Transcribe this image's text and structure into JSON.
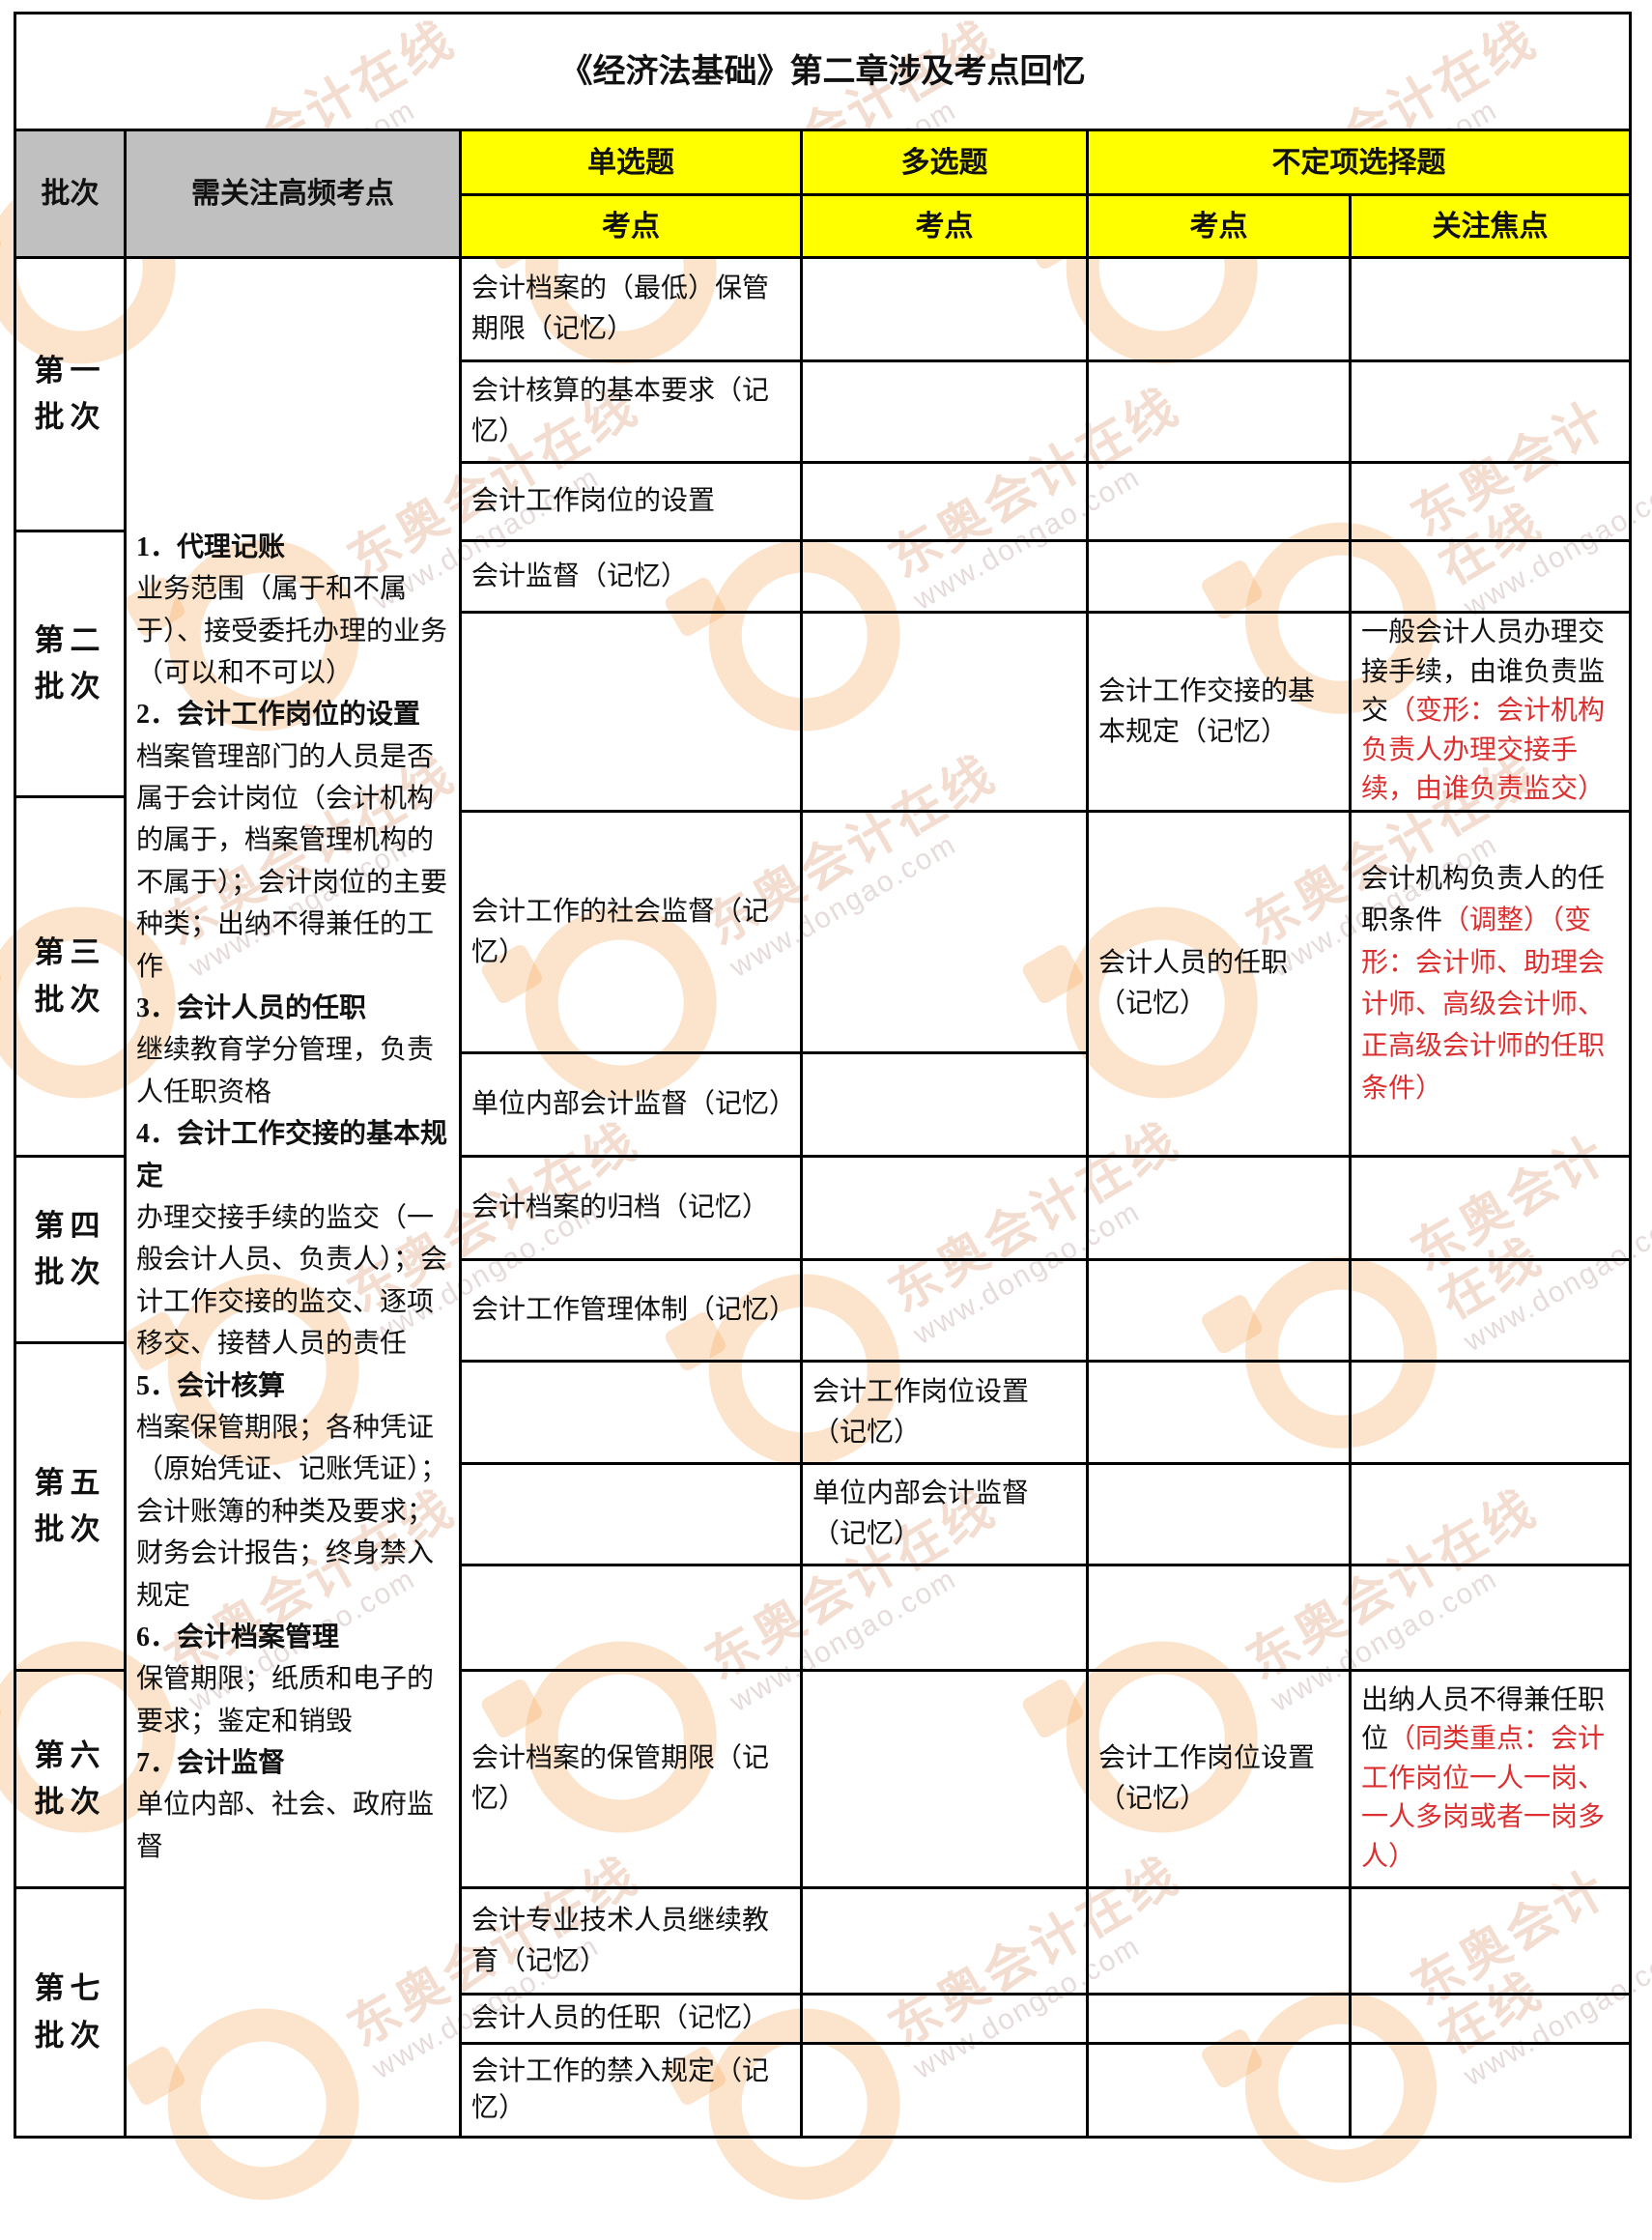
{
  "title": "《经济法基础》第二章涉及考点回忆",
  "watermark": {
    "brand": "东奥会计在线",
    "url": "www.dongao.com"
  },
  "colors": {
    "header_gray": "#c0c0c0",
    "header_yellow": "#ffff00",
    "accent_red": "#dd2f2f",
    "border": "#000000",
    "watermark_orange": "#f6a656"
  },
  "header": {
    "batch": "批次",
    "high_freq": "需关注高频考点",
    "single_choice": "单选题",
    "multi_choice": "多选题",
    "indefinite_choice": "不定项选择题",
    "point_single": "考点",
    "point_multi": "考点",
    "point_indef": "考点",
    "focus": "关注焦点"
  },
  "batches": [
    "第一\n批次",
    "第二\n批次",
    "第三\n批次",
    "第四\n批次",
    "第五\n批次",
    "第六\n批次",
    "第七\n批次"
  ],
  "high_freq": [
    {
      "head": "1．代理记账",
      "body": "业务范围（属于和不属于）、接受委托办理的业务（可以和不可以）"
    },
    {
      "head": "2．会计工作岗位的设置",
      "body": "档案管理部门的人员是否属于会计岗位（会计机构的属于，档案管理机构的不属于）；会计岗位的主要种类；出纳不得兼任的工作"
    },
    {
      "head": "3．会计人员的任职",
      "body": "继续教育学分管理，负责人任职资格"
    },
    {
      "head": "4．会计工作交接的基本规定",
      "body": "办理交接手续的监交（一般会计人员、负责人）；会计工作交接的监交、逐项移交、接替人员的责任"
    },
    {
      "head": "5．会计核算",
      "body": "档案保管期限；各种凭证（原始凭证、记账凭证）；会计账簿的种类及要求；财务会计报告；终身禁入规定"
    },
    {
      "head": "6．会计档案管理",
      "body": "保管期限；纸质和电子的要求；鉴定和销毁"
    },
    {
      "head": "7．会计监督",
      "body": "单位内部、社会、政府监督"
    }
  ],
  "single_cells": [
    "会计档案的（最低）保管期限（记忆）",
    "会计核算的基本要求（记忆）",
    "会计工作岗位的设置",
    "会计监督（记忆）",
    "",
    "会计工作的社会监督（记忆）",
    "单位内部会计监督（记忆）",
    "会计档案的归档（记忆）",
    "会计工作管理体制（记忆）",
    "",
    "",
    "",
    "会计档案的保管期限（记忆）",
    "会计专业技术人员继续教育（记忆）",
    "会计人员的任职（记忆）",
    "会计工作的禁入规定（记忆）"
  ],
  "multi_cells": [
    "",
    "",
    "",
    "",
    "",
    "",
    "",
    "",
    "",
    "会计工作岗位设置（记忆）",
    "单位内部会计监督（记忆）",
    "",
    "",
    "",
    "",
    ""
  ],
  "indef_cells": [
    "",
    "",
    "",
    "",
    "会计工作交接的基本规定（记忆）",
    "会计人员的任职（记忆）",
    "",
    "",
    "",
    "",
    "",
    "会计工作岗位设置（记忆）",
    "",
    "",
    ""
  ],
  "focus_cells": [
    {
      "black": "",
      "red": ""
    },
    {
      "black": "",
      "red": ""
    },
    {
      "black": "",
      "red": ""
    },
    {
      "black": "",
      "red": ""
    },
    {
      "black": "一般会计人员办理交接手续，由谁负责监交",
      "red": "（变形：会计机构负责人办理交接手续，由谁负责监交）"
    },
    {
      "black": "会计机构负责人的任职条件",
      "red": "（调整）（变形：会计师、助理会计师、高级会计师、正高级会计师的任职条件）"
    },
    {
      "black": "",
      "red": ""
    },
    {
      "black": "",
      "red": ""
    },
    {
      "black": "",
      "red": ""
    },
    {
      "black": "",
      "red": ""
    },
    {
      "black": "",
      "red": ""
    },
    {
      "black": "出纳人员不得兼任职位",
      "red": "（同类重点：会计工作岗位一人一岗、一人多岗或者一岗多人）"
    },
    {
      "black": "",
      "red": ""
    },
    {
      "black": "",
      "red": ""
    },
    {
      "black": "",
      "red": ""
    }
  ]
}
